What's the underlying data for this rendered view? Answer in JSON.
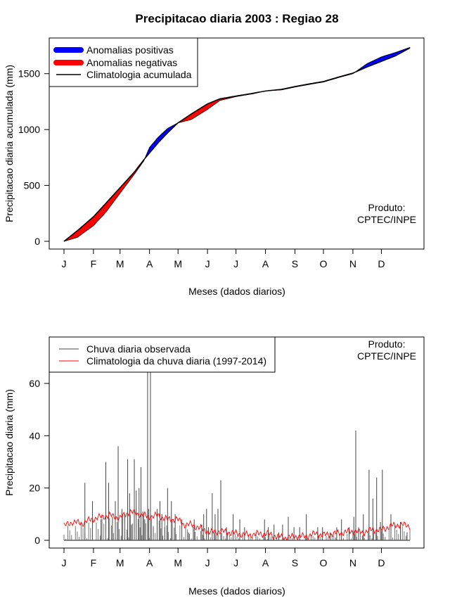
{
  "title": "Precipitacao diaria 2003 : Regiao 28",
  "chart_data": [
    {
      "type": "area",
      "ylabel": "Precipitacao diaria acumulada (mm)",
      "xlabel": "Meses (dados diarios)",
      "x_range": [
        1,
        365
      ],
      "ylim": [
        0,
        1750
      ],
      "y_ticks": [
        0,
        500,
        1000,
        1500
      ],
      "month_ticks": [
        "J",
        "F",
        "M",
        "A",
        "M",
        "J",
        "J",
        "A",
        "S",
        "O",
        "N",
        "D"
      ],
      "month_days": [
        1,
        32,
        60,
        91,
        121,
        152,
        182,
        213,
        244,
        274,
        305,
        335
      ],
      "legend": {
        "positive": "Anomalias positivas",
        "negative": "Anomalias negativas",
        "climatology": "Climatologia acumulada"
      },
      "colors": {
        "positive": "#0000ff",
        "negative": "#ff0000",
        "climatology": "#000000"
      },
      "climatology_points": [
        [
          1,
          0
        ],
        [
          15,
          95
        ],
        [
          32,
          220
        ],
        [
          45,
          340
        ],
        [
          60,
          480
        ],
        [
          75,
          620
        ],
        [
          85,
          730
        ],
        [
          91,
          790
        ],
        [
          100,
          880
        ],
        [
          110,
          970
        ],
        [
          121,
          1060
        ],
        [
          135,
          1140
        ],
        [
          152,
          1230
        ],
        [
          165,
          1275
        ],
        [
          182,
          1300
        ],
        [
          200,
          1325
        ],
        [
          213,
          1345
        ],
        [
          230,
          1360
        ],
        [
          244,
          1385
        ],
        [
          260,
          1410
        ],
        [
          274,
          1430
        ],
        [
          290,
          1470
        ],
        [
          305,
          1505
        ],
        [
          320,
          1560
        ],
        [
          335,
          1610
        ],
        [
          350,
          1660
        ],
        [
          365,
          1730
        ]
      ],
      "observed_points": [
        [
          1,
          0
        ],
        [
          15,
          35
        ],
        [
          32,
          140
        ],
        [
          45,
          260
        ],
        [
          60,
          430
        ],
        [
          75,
          600
        ],
        [
          85,
          720
        ],
        [
          91,
          840
        ],
        [
          100,
          930
        ],
        [
          110,
          1010
        ],
        [
          121,
          1060
        ],
        [
          135,
          1090
        ],
        [
          152,
          1180
        ],
        [
          165,
          1260
        ],
        [
          182,
          1295
        ],
        [
          200,
          1320
        ],
        [
          213,
          1345
        ],
        [
          230,
          1355
        ],
        [
          244,
          1380
        ],
        [
          260,
          1405
        ],
        [
          274,
          1425
        ],
        [
          290,
          1465
        ],
        [
          305,
          1500
        ],
        [
          320,
          1590
        ],
        [
          335,
          1650
        ],
        [
          350,
          1690
        ],
        [
          365,
          1735
        ]
      ],
      "note": [
        "Produto:",
        "CPTEC/INPE"
      ]
    },
    {
      "type": "line",
      "ylabel": "Precipitacao diaria (mm)",
      "xlabel": "Meses (dados diarios)",
      "x_range": [
        1,
        365
      ],
      "ylim": [
        0,
        75
      ],
      "y_ticks": [
        0,
        20,
        40,
        60
      ],
      "month_ticks": [
        "J",
        "F",
        "M",
        "A",
        "M",
        "J",
        "J",
        "A",
        "S",
        "O",
        "N",
        "D"
      ],
      "month_days": [
        1,
        32,
        60,
        91,
        121,
        152,
        182,
        213,
        244,
        274,
        305,
        335
      ],
      "legend": {
        "observed": "Chuva diaria observada",
        "climatology": "Climatologia da chuva diaria (1997-2014)"
      },
      "colors": {
        "observed": "#444444",
        "climatology": "#ff0000"
      },
      "observed_spikes": [
        [
          23,
          22
        ],
        [
          31,
          15
        ],
        [
          40,
          8
        ],
        [
          45,
          30
        ],
        [
          48,
          22
        ],
        [
          52,
          9
        ],
        [
          55,
          15
        ],
        [
          58,
          36
        ],
        [
          62,
          12
        ],
        [
          65,
          10
        ],
        [
          68,
          31
        ],
        [
          70,
          18
        ],
        [
          72,
          6
        ],
        [
          75,
          31
        ],
        [
          77,
          19
        ],
        [
          80,
          20
        ],
        [
          82,
          28
        ],
        [
          84,
          11
        ],
        [
          86,
          8
        ],
        [
          89,
          75
        ],
        [
          90,
          12
        ],
        [
          92,
          72
        ],
        [
          95,
          5
        ],
        [
          99,
          12
        ],
        [
          102,
          15
        ],
        [
          104,
          10
        ],
        [
          107,
          5
        ],
        [
          110,
          20
        ],
        [
          114,
          15
        ],
        [
          118,
          10
        ],
        [
          125,
          8
        ],
        [
          132,
          3
        ],
        [
          138,
          8
        ],
        [
          146,
          6
        ],
        [
          148,
          10
        ],
        [
          151,
          12
        ],
        [
          153,
          5
        ],
        [
          157,
          18
        ],
        [
          160,
          10
        ],
        [
          163,
          12
        ],
        [
          166,
          23
        ],
        [
          172,
          5
        ],
        [
          179,
          10
        ],
        [
          186,
          8
        ],
        [
          191,
          5
        ],
        [
          203,
          3
        ],
        [
          212,
          8
        ],
        [
          216,
          5
        ],
        [
          222,
          6
        ],
        [
          227,
          3
        ],
        [
          231,
          6
        ],
        [
          237,
          9
        ],
        [
          243,
          5
        ],
        [
          249,
          5
        ],
        [
          256,
          10
        ],
        [
          268,
          5
        ],
        [
          273,
          5
        ],
        [
          281,
          3
        ],
        [
          288,
          5
        ],
        [
          293,
          8
        ],
        [
          301,
          5
        ],
        [
          306,
          9
        ],
        [
          308,
          42
        ],
        [
          311,
          5
        ],
        [
          316,
          10
        ],
        [
          322,
          27
        ],
        [
          326,
          16
        ],
        [
          330,
          24
        ],
        [
          334,
          7
        ],
        [
          336,
          27
        ],
        [
          345,
          10
        ],
        [
          355,
          7
        ],
        [
          362,
          3
        ]
      ],
      "climatology_points": [
        [
          1,
          5.5
        ],
        [
          10,
          7
        ],
        [
          20,
          6.5
        ],
        [
          30,
          8
        ],
        [
          40,
          9
        ],
        [
          50,
          9.5
        ],
        [
          60,
          8.5
        ],
        [
          70,
          11
        ],
        [
          80,
          10
        ],
        [
          90,
          9
        ],
        [
          100,
          9.5
        ],
        [
          110,
          8
        ],
        [
          120,
          8
        ],
        [
          128,
          6
        ],
        [
          135,
          6
        ],
        [
          145,
          4.5
        ],
        [
          155,
          3
        ],
        [
          165,
          3.5
        ],
        [
          175,
          3
        ],
        [
          185,
          2.5
        ],
        [
          195,
          2
        ],
        [
          205,
          2.5
        ],
        [
          215,
          2.5
        ],
        [
          225,
          1.5
        ],
        [
          235,
          1
        ],
        [
          245,
          1.5
        ],
        [
          255,
          1.5
        ],
        [
          265,
          2.5
        ],
        [
          275,
          2
        ],
        [
          285,
          2.5
        ],
        [
          295,
          3
        ],
        [
          305,
          3.5
        ],
        [
          315,
          3
        ],
        [
          325,
          4
        ],
        [
          335,
          4
        ],
        [
          345,
          5.5
        ],
        [
          355,
          6
        ],
        [
          365,
          5.5
        ]
      ],
      "note": [
        "Produto:",
        "CPTEC/INPE"
      ]
    }
  ]
}
